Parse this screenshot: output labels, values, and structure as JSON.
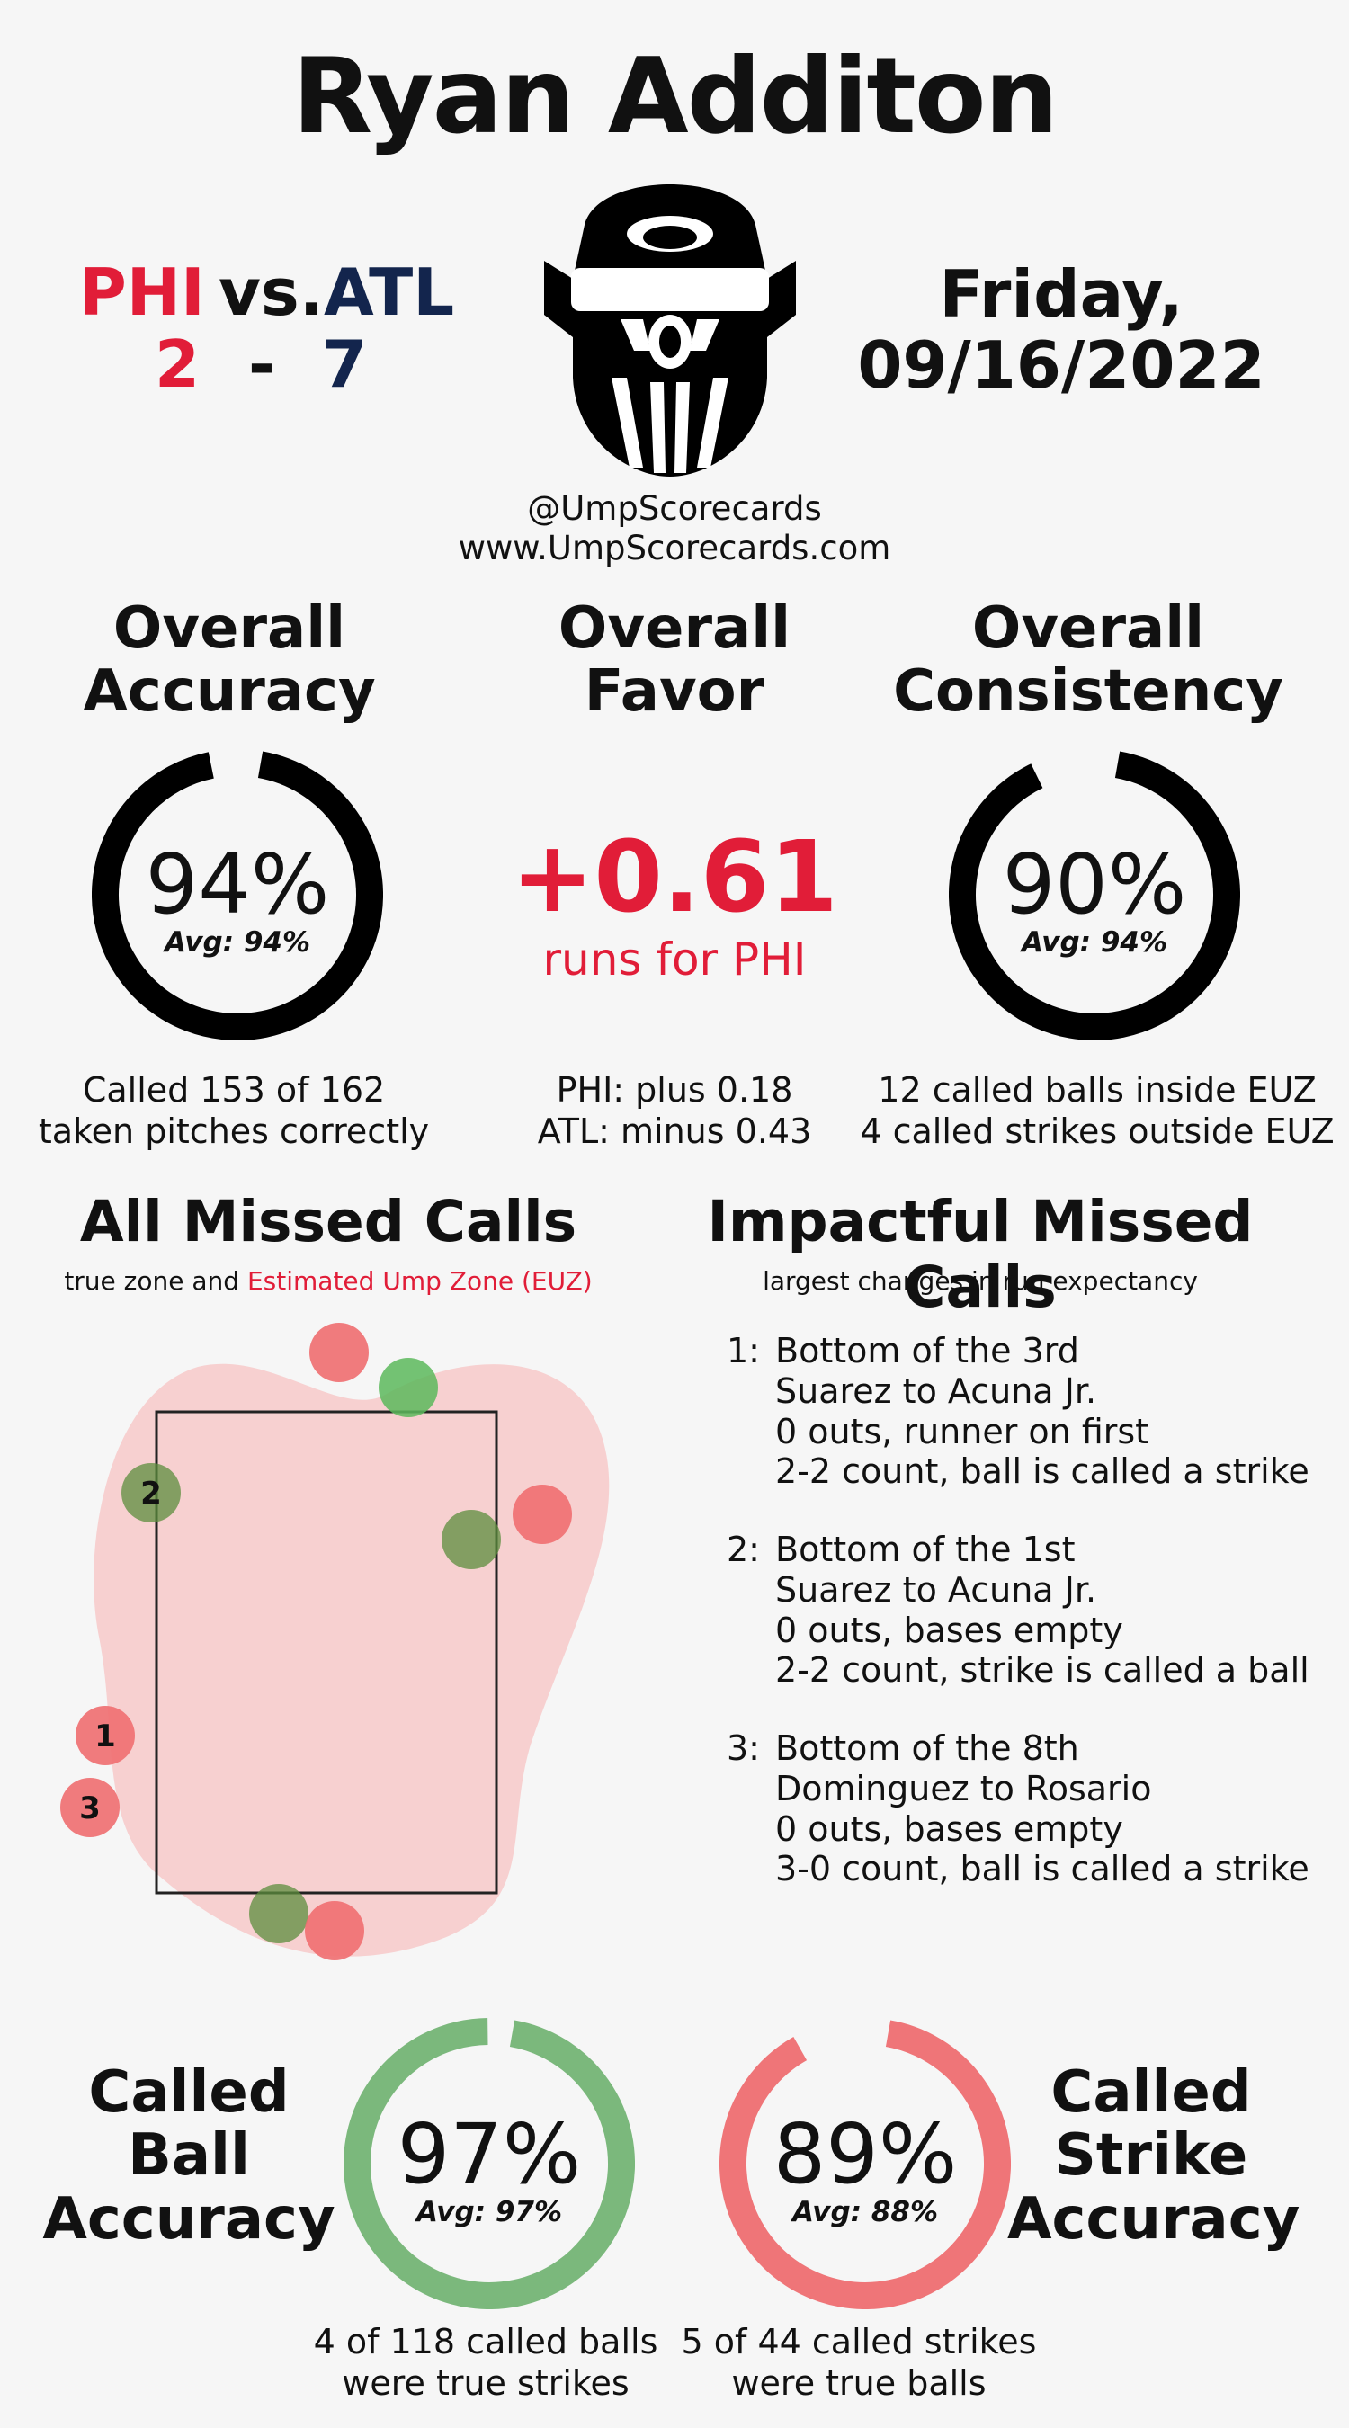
{
  "umpire_name": "Ryan Additon",
  "game": {
    "away_team": "PHI",
    "home_team": "ATL",
    "vs_label": "vs.",
    "away_score": "2",
    "score_sep": "-",
    "home_score": "7",
    "date_line1": "Friday,",
    "date_line2": "09/16/2022"
  },
  "social": {
    "handle": "@UmpScorecards",
    "website": "www.UmpScorecards.com"
  },
  "colors": {
    "phi_red": "#e11d38",
    "atl_navy": "#13254d",
    "ball_green": "#7bb87c",
    "strike_red": "#ef7578",
    "zone_pink": "#f7d0d0"
  },
  "accuracy": {
    "title_line1": "Overall",
    "title_line2": "Accuracy",
    "pct": "94%",
    "value": 0.94,
    "avg": "Avg: 94%",
    "desc_line1": "Called 153 of 162",
    "desc_line2": "taken pitches correctly"
  },
  "favor": {
    "title_line1": "Overall",
    "title_line2": "Favor",
    "value": "+0.61",
    "label": "runs for PHI",
    "desc_line1": "PHI: plus 0.18",
    "desc_line2": "ATL: minus 0.43"
  },
  "consistency": {
    "title_line1": "Overall",
    "title_line2": "Consistency",
    "pct": "90%",
    "value": 0.9,
    "avg": "Avg: 94%",
    "desc_line1": "12 called balls inside EUZ",
    "desc_line2": "4 called strikes outside EUZ"
  },
  "missed_calls": {
    "title": "All Missed Calls",
    "subtitle_prefix": "true zone and",
    "subtitle_euz": "Estimated Ump Zone (EUZ)",
    "label_1": "1",
    "label_2": "2",
    "label_3": "3"
  },
  "impactful": {
    "title": "Impactful Missed Calls",
    "subtitle": "largest changes in run expectancy",
    "calls": [
      {
        "num": "1:",
        "line1": "Bottom of the 3rd",
        "line2": "Suarez to Acuna Jr.",
        "line3": "0 outs, runner on first",
        "line4": "2-2 count, ball is called a strike"
      },
      {
        "num": "2:",
        "line1": "Bottom of the 1st",
        "line2": "Suarez to Acuna Jr.",
        "line3": "0 outs, bases empty",
        "line4": "2-2 count, strike is called a ball"
      },
      {
        "num": "3:",
        "line1": "Bottom of the 8th",
        "line2": "Dominguez to Rosario",
        "line3": "0 outs, bases empty",
        "line4": "3-0 count, ball is called a strike"
      }
    ]
  },
  "ball_accuracy": {
    "title_line1": "Called",
    "title_line2": "Ball",
    "title_line3": "Accuracy",
    "pct": "97%",
    "value": 0.97,
    "avg": "Avg: 97%",
    "desc_line1": "4 of 118 called balls",
    "desc_line2": "were true strikes"
  },
  "strike_accuracy": {
    "title_line1": "Called",
    "title_line2": "Strike",
    "title_line3": "Accuracy",
    "pct": "89%",
    "value": 0.89,
    "avg": "Avg: 88%",
    "desc_line1": "5 of 44 called strikes",
    "desc_line2": "were true balls"
  }
}
